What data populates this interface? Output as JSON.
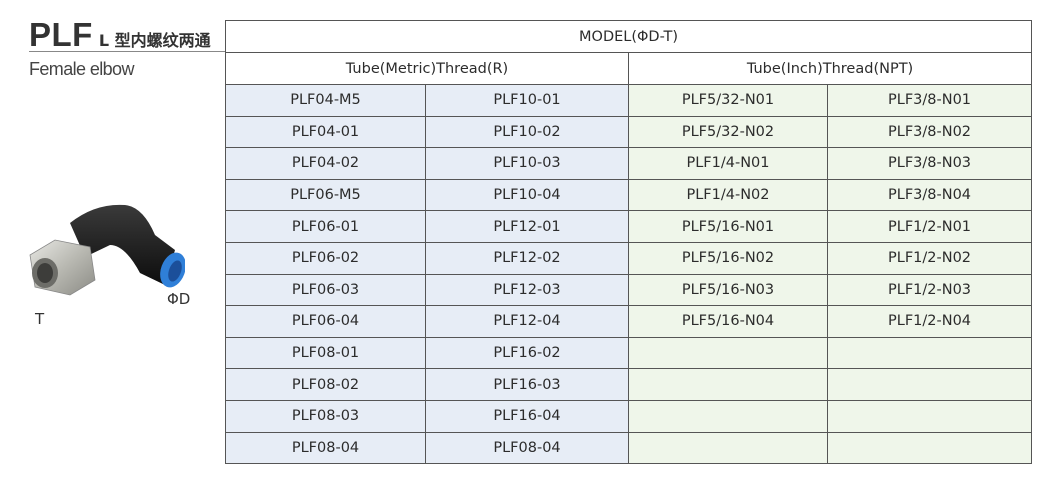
{
  "header": {
    "code": "PLF",
    "name_cn": "L 型内螺纹两通",
    "name_en": "Female elbow"
  },
  "diagram": {
    "thread_label": "T",
    "tube_label": "ΦD"
  },
  "table": {
    "title": "MODEL(ΦD-T)",
    "groups": [
      "Tube(Metric)Thread(R)",
      "Tube(Inch)Thread(NPT)"
    ],
    "colors": {
      "metric_bg": "#e7edf6",
      "inch_bg": "#eff6ea"
    },
    "rows": [
      [
        "PLF04-M5",
        "PLF10-01",
        "PLF5/32-N01",
        "PLF3/8-N01"
      ],
      [
        "PLF04-01",
        "PLF10-02",
        "PLF5/32-N02",
        "PLF3/8-N02"
      ],
      [
        "PLF04-02",
        "PLF10-03",
        "PLF1/4-N01",
        "PLF3/8-N03"
      ],
      [
        "PLF06-M5",
        "PLF10-04",
        "PLF1/4-N02",
        "PLF3/8-N04"
      ],
      [
        "PLF06-01",
        "PLF12-01",
        "PLF5/16-N01",
        "PLF1/2-N01"
      ],
      [
        "PLF06-02",
        "PLF12-02",
        "PLF5/16-N02",
        "PLF1/2-N02"
      ],
      [
        "PLF06-03",
        "PLF12-03",
        "PLF5/16-N03",
        "PLF1/2-N03"
      ],
      [
        "PLF06-04",
        "PLF12-04",
        "PLF5/16-N04",
        "PLF1/2-N04"
      ],
      [
        "PLF08-01",
        "PLF16-02",
        "",
        ""
      ],
      [
        "PLF08-02",
        "PLF16-03",
        "",
        ""
      ],
      [
        "PLF08-03",
        "PLF16-04",
        "",
        ""
      ],
      [
        "PLF08-04",
        "PLF08-04",
        "",
        ""
      ]
    ]
  }
}
